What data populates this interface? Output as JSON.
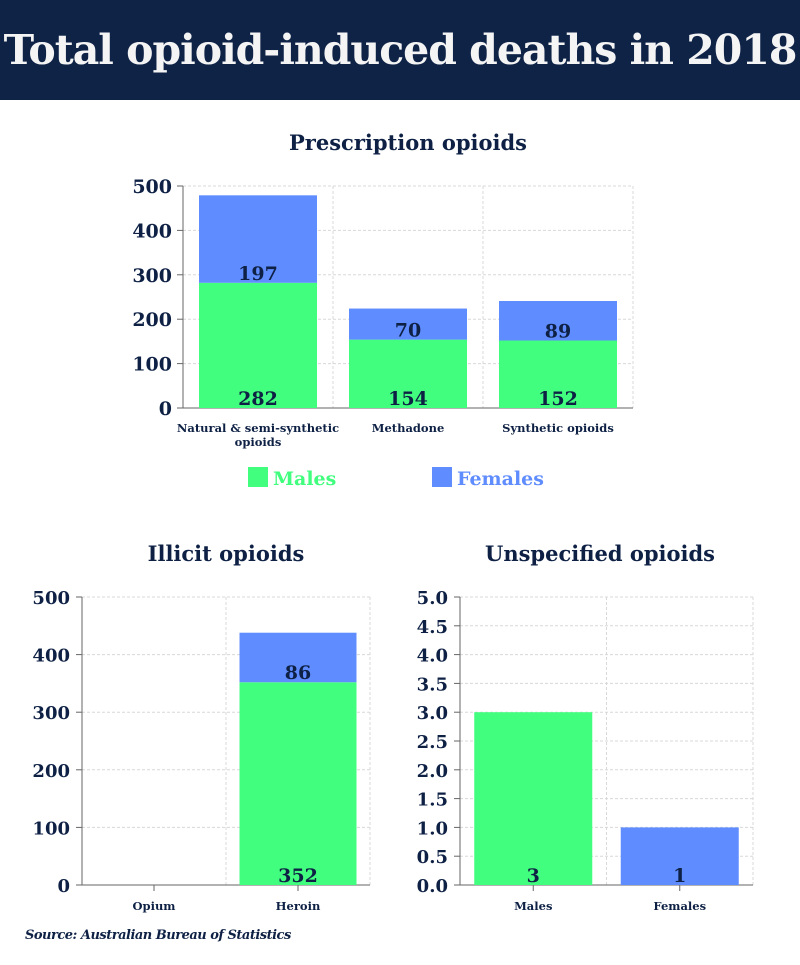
{
  "title": "Total opioid-induced deaths in 2018",
  "source": "Source: Australian Bureau of Statistics",
  "colors": {
    "header_bg": "#0f2347",
    "males": "#41fe7e",
    "females": "#5f8cfe",
    "text": "#0e2145"
  },
  "legend": {
    "placement": "bottom",
    "items": [
      "Males",
      "Females"
    ]
  },
  "chart_data": [
    {
      "type": "bar",
      "stacked": true,
      "title": "Prescription opioids",
      "categories": [
        [
          "Natural & semi-synthetic",
          "opioids"
        ],
        [
          "Methadone"
        ],
        [
          "Synthetic opioids"
        ]
      ],
      "series": [
        {
          "name": "Males",
          "values": [
            282,
            154,
            152
          ]
        },
        {
          "name": "Females",
          "values": [
            197,
            70,
            89
          ]
        }
      ],
      "ylim": [
        0,
        500
      ],
      "yticks": [
        "0",
        "100",
        "200",
        "300",
        "400",
        "500"
      ],
      "grid": true
    },
    {
      "type": "bar",
      "stacked": true,
      "title": "Illicit opioids",
      "categories": [
        [
          "Opium"
        ],
        [
          "Heroin"
        ]
      ],
      "series": [
        {
          "name": "Males",
          "values": [
            0,
            352
          ]
        },
        {
          "name": "Females",
          "values": [
            0,
            86
          ]
        }
      ],
      "ylim": [
        0,
        500
      ],
      "yticks": [
        "0",
        "100",
        "200",
        "300",
        "400",
        "500"
      ],
      "grid": true
    },
    {
      "type": "bar",
      "stacked": false,
      "title": "Unspecified opioids",
      "categories": [
        [
          "Males"
        ],
        [
          "Females"
        ]
      ],
      "values": [
        3,
        1
      ],
      "bar_colors": [
        "males",
        "females"
      ],
      "ylim": [
        0,
        5
      ],
      "yticks": [
        "0.0",
        "0.5",
        "1.0",
        "1.5",
        "2.0",
        "2.5",
        "3.0",
        "3.5",
        "4.0",
        "4.5",
        "5.0"
      ],
      "grid": true
    }
  ]
}
